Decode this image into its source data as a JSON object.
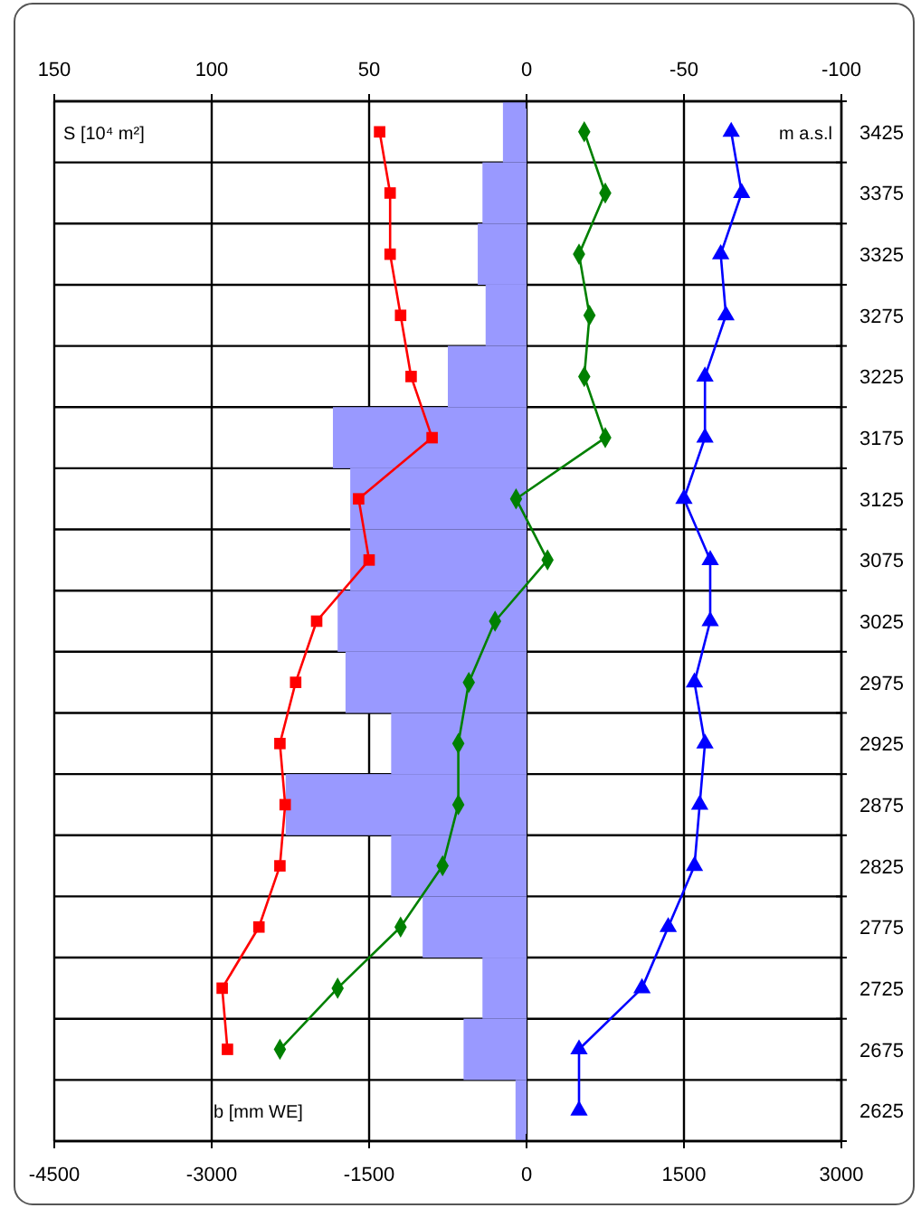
{
  "chart_data": {
    "type": "line",
    "orientation": "horizontal",
    "xlabel": "b [mm WE]",
    "x2label": "S [10⁴ m²]",
    "ylabel": "m a.s.l",
    "categories": [
      "3425",
      "3375",
      "3325",
      "3275",
      "3225",
      "3175",
      "3125",
      "3075",
      "3025",
      "2975",
      "2925",
      "2875",
      "2825",
      "2775",
      "2725",
      "2675",
      "2625"
    ],
    "xlim": [
      -4500,
      3000
    ],
    "xticks": [
      -4500,
      -3000,
      -1500,
      0,
      1500,
      3000
    ],
    "x2lim": [
      150,
      -100
    ],
    "x2ticks": [
      150,
      100,
      50,
      0,
      -50,
      -100
    ],
    "grid": true,
    "line_style": "solid",
    "series": [
      {
        "type": "bar",
        "axis": "x2",
        "color": "#9999ff",
        "values": [
          7.5,
          14,
          15.5,
          13,
          25,
          61.5,
          56,
          56,
          60,
          57.5,
          43,
          76.5,
          43,
          33,
          14,
          20,
          3.5
        ]
      },
      {
        "color": "#ff0000",
        "marker": "square",
        "values": [
          -1400,
          -1300,
          -1300,
          -1200,
          -1100,
          -900,
          -1600,
          -1500,
          -2000,
          -2200,
          -2350,
          -2300,
          -2350,
          -2550,
          -2900,
          -2850,
          null
        ]
      },
      {
        "color": "#008000",
        "marker": "diamond",
        "values": [
          550,
          750,
          500,
          600,
          550,
          750,
          -100,
          200,
          -300,
          -550,
          -650,
          -650,
          -800,
          -1200,
          -1800,
          -2350,
          null
        ]
      },
      {
        "color": "#0000ff",
        "marker": "triangle",
        "values": [
          1950,
          2050,
          1850,
          1900,
          1700,
          1700,
          1500,
          1750,
          1750,
          1600,
          1700,
          1650,
          1600,
          1350,
          1100,
          500,
          500
        ]
      }
    ]
  }
}
